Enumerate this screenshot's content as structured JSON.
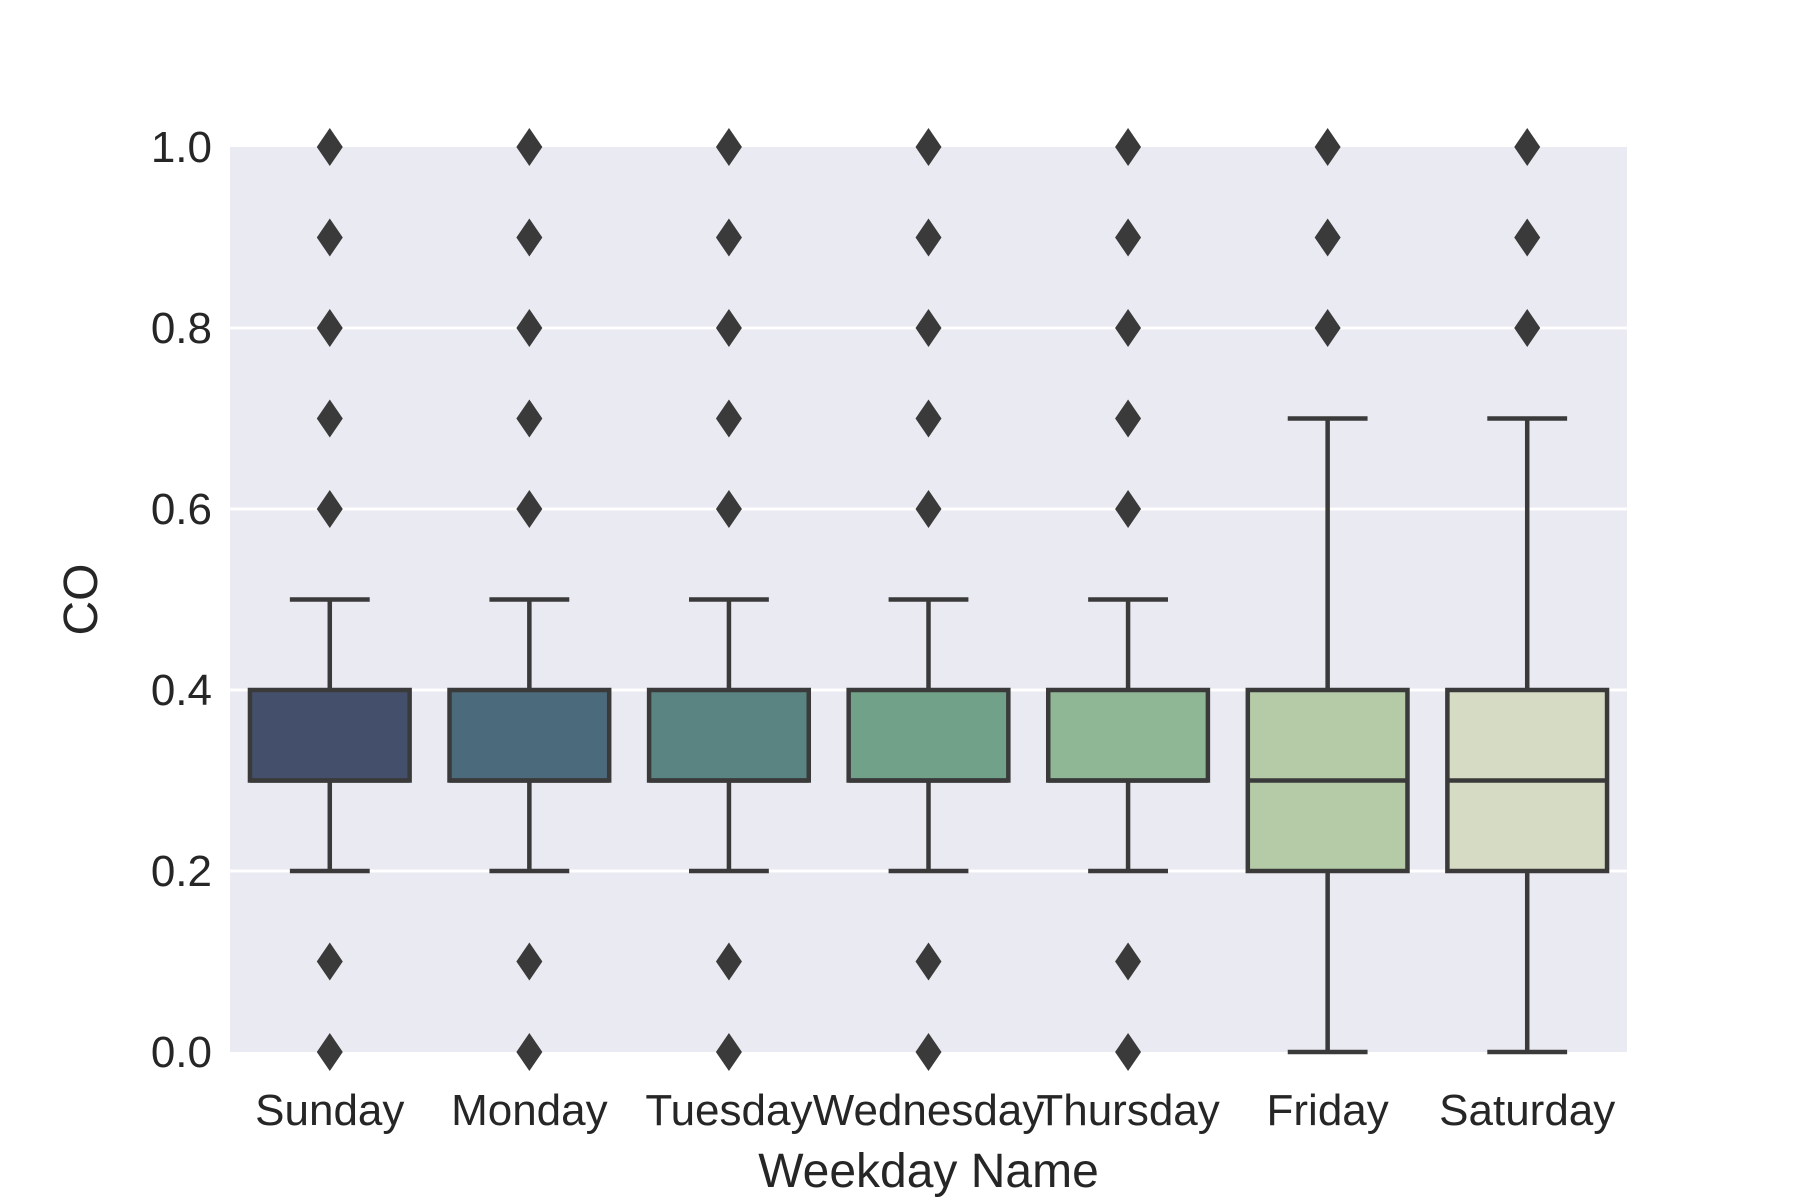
{
  "chart_data": {
    "type": "box",
    "title": "",
    "xlabel": "Weekday Name",
    "ylabel": "CO",
    "ylim": [
      0.0,
      1.0
    ],
    "yticks": [
      0.0,
      0.2,
      0.4,
      0.6,
      0.8,
      1.0
    ],
    "ytick_labels": [
      "0.0",
      "0.2",
      "0.4",
      "0.6",
      "0.8",
      "1.0"
    ],
    "grid": true,
    "legend": "none",
    "background": "#EAEAF2",
    "grid_color": "#FFFFFF",
    "line_color": "#3A3A3A",
    "categories": [
      "Sunday",
      "Monday",
      "Tuesday",
      "Wednesday",
      "Thursday",
      "Friday",
      "Saturday"
    ],
    "boxes": [
      {
        "label": "Sunday",
        "whisker_low": 0.2,
        "q1": 0.3,
        "median": 0.3,
        "q3": 0.4,
        "whisker_high": 0.5,
        "outliers": [
          0.0,
          0.1,
          0.6,
          0.7,
          0.8,
          0.9,
          1.0
        ],
        "color": "#44506B"
      },
      {
        "label": "Monday",
        "whisker_low": 0.2,
        "q1": 0.3,
        "median": 0.3,
        "q3": 0.4,
        "whisker_high": 0.5,
        "outliers": [
          0.0,
          0.1,
          0.6,
          0.7,
          0.8,
          0.9,
          1.0
        ],
        "color": "#4B6A7C"
      },
      {
        "label": "Tuesday",
        "whisker_low": 0.2,
        "q1": 0.3,
        "median": 0.3,
        "q3": 0.4,
        "whisker_high": 0.5,
        "outliers": [
          0.0,
          0.1,
          0.6,
          0.7,
          0.8,
          0.9,
          1.0
        ],
        "color": "#5A8482"
      },
      {
        "label": "Wednesday",
        "whisker_low": 0.2,
        "q1": 0.3,
        "median": 0.3,
        "q3": 0.4,
        "whisker_high": 0.5,
        "outliers": [
          0.0,
          0.1,
          0.6,
          0.7,
          0.8,
          0.9,
          1.0
        ],
        "color": "#72A18A"
      },
      {
        "label": "Thursday",
        "whisker_low": 0.2,
        "q1": 0.3,
        "median": 0.3,
        "q3": 0.4,
        "whisker_high": 0.5,
        "outliers": [
          0.0,
          0.1,
          0.6,
          0.7,
          0.8,
          0.9,
          1.0
        ],
        "color": "#8FB796"
      },
      {
        "label": "Friday",
        "whisker_low": 0.0,
        "q1": 0.2,
        "median": 0.3,
        "q3": 0.4,
        "whisker_high": 0.7,
        "outliers": [
          0.8,
          0.9,
          1.0
        ],
        "color": "#B5CBA8"
      },
      {
        "label": "Saturday",
        "whisker_low": 0.0,
        "q1": 0.2,
        "median": 0.3,
        "q3": 0.4,
        "whisker_high": 0.7,
        "outliers": [
          0.8,
          0.9,
          1.0
        ],
        "color": "#D6DCC4"
      }
    ]
  }
}
